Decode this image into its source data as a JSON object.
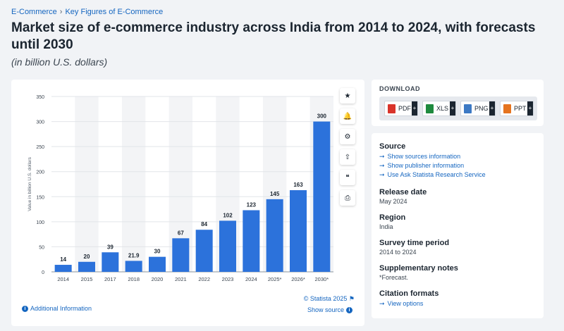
{
  "breadcrumb": {
    "items": [
      "E-Commerce",
      "Key Figures of E-Commerce"
    ],
    "separator": "›"
  },
  "title": "Market size of e-commerce industry across India from 2014 to 2024, with forecasts until 2030",
  "subtitle": "(in billion U.S. dollars)",
  "chart_data": {
    "type": "bar",
    "categories": [
      "2014",
      "2015",
      "2017",
      "2018",
      "2020",
      "2021",
      "2022",
      "2023",
      "2024",
      "2025*",
      "2026*",
      "2030*"
    ],
    "values": [
      14,
      20,
      39,
      21.9,
      30,
      67,
      84,
      102,
      123,
      145,
      163,
      300
    ],
    "value_labels": [
      "14",
      "20",
      "39",
      "21.9",
      "30",
      "67",
      "84",
      "102",
      "123",
      "145",
      "163",
      "300"
    ],
    "ylabel": "Value in billion U.S. dollars",
    "xlabel": "",
    "ylim": [
      0,
      350
    ],
    "yticks": [
      0,
      50,
      100,
      150,
      200,
      250,
      300,
      350
    ],
    "grid": true,
    "bar_color": "#2c72db",
    "band_color": "#f3f4f6"
  },
  "tools": {
    "favorite": "★",
    "notify": "🔔",
    "settings": "⚙",
    "share": "⇧",
    "cite": "❝",
    "print": "⎙"
  },
  "credit": "© Statista 2025",
  "show_source": "Show source",
  "additional_info": "Additional Information",
  "download": {
    "label": "DOWNLOAD",
    "buttons": [
      {
        "label": "PDF",
        "color": "#d9342b"
      },
      {
        "label": "XLS",
        "color": "#1e8a3e"
      },
      {
        "label": "PNG",
        "color": "#3c79c4"
      },
      {
        "label": "PPT",
        "color": "#e5731e"
      }
    ]
  },
  "meta": {
    "source_heading": "Source",
    "source_links": [
      "Show sources information",
      "Show publisher information",
      "Use Ask Statista Research Service"
    ],
    "release_heading": "Release date",
    "release_value": "May 2024",
    "region_heading": "Region",
    "region_value": "India",
    "period_heading": "Survey time period",
    "period_value": "2014 to 2024",
    "notes_heading": "Supplementary notes",
    "notes_value": "*Forecast.",
    "citation_heading": "Citation formats",
    "citation_link": "View options"
  }
}
